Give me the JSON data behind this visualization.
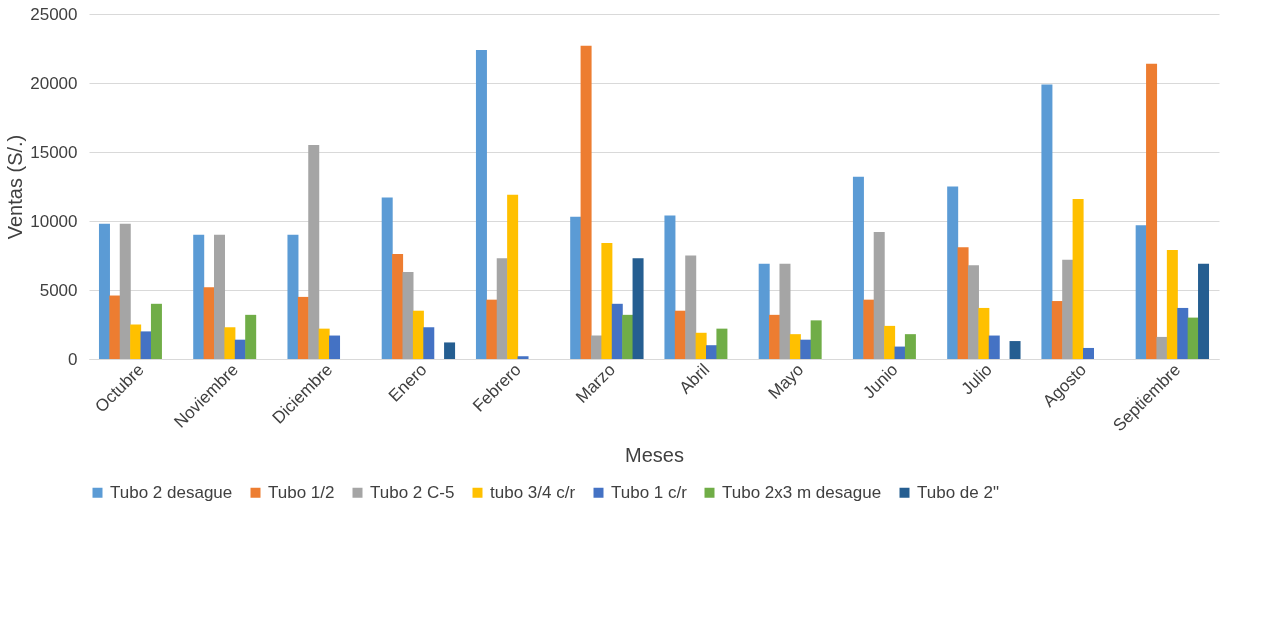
{
  "chart_data": {
    "type": "bar",
    "xlabel": "Meses",
    "ylabel": "Ventas (S/.)",
    "categories": [
      "Octubre",
      "Noviembre",
      "Diciembre",
      "Enero",
      "Febrero",
      "Marzo",
      "Abril",
      "Mayo",
      "Junio",
      "Julio",
      "Agosto",
      "Septiembre"
    ],
    "ylim": [
      0,
      25000
    ],
    "yticks": [
      0,
      5000,
      10000,
      15000,
      20000,
      25000
    ],
    "grid": "y",
    "legend": "bottom",
    "series": [
      {
        "name": "Tubo 2 desague",
        "color": "#5b9bd5",
        "values": [
          9800,
          9000,
          9000,
          11700,
          22400,
          10300,
          10400,
          6900,
          13200,
          12500,
          19900,
          9700
        ]
      },
      {
        "name": "Tubo 1/2",
        "color": "#ed7d31",
        "values": [
          4600,
          5200,
          4500,
          7600,
          4300,
          22700,
          3500,
          3200,
          4300,
          8100,
          4200,
          21400
        ]
      },
      {
        "name": "Tubo 2 C-5",
        "color": "#a5a5a5",
        "values": [
          9800,
          9000,
          15500,
          6300,
          7300,
          1700,
          7500,
          6900,
          9200,
          6800,
          7200,
          1600
        ]
      },
      {
        "name": "tubo 3/4 c/r",
        "color": "#ffc000",
        "values": [
          2500,
          2300,
          2200,
          3500,
          11900,
          8400,
          1900,
          1800,
          2400,
          3700,
          11600,
          7900
        ]
      },
      {
        "name": "Tubo 1 c/r",
        "color": "#4472c4",
        "values": [
          2000,
          1400,
          1700,
          2300,
          200,
          4000,
          1000,
          1400,
          900,
          1700,
          800,
          3700
        ]
      },
      {
        "name": "Tubo 2x3 m desague",
        "color": "#70ad47",
        "values": [
          4000,
          3200,
          null,
          null,
          null,
          3200,
          2200,
          2800,
          1800,
          null,
          null,
          3000
        ]
      },
      {
        "name": "Tubo de 2\"",
        "color": "#255e91",
        "values": [
          null,
          null,
          null,
          1200,
          null,
          7300,
          null,
          null,
          null,
          1300,
          null,
          6900
        ]
      }
    ]
  }
}
